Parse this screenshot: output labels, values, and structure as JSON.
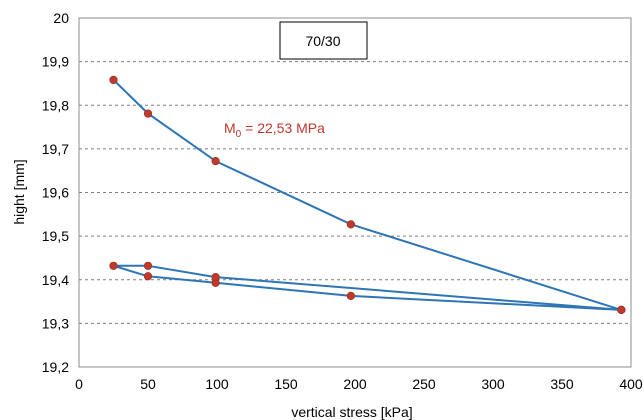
{
  "chart_data": {
    "type": "line",
    "title": "",
    "xlabel": "vertical stress [kPa]",
    "ylabel": "hight [mm]",
    "xlim": [
      0,
      400
    ],
    "ylim": [
      19.2,
      20
    ],
    "x_ticks": [
      0,
      50,
      100,
      150,
      200,
      250,
      300,
      350,
      400
    ],
    "y_ticks": [
      19.2,
      19.3,
      19.4,
      19.5,
      19.6,
      19.7,
      19.8,
      19.9,
      20
    ],
    "x_tick_labels": [
      "0",
      "50",
      "100",
      "150",
      "200",
      "250",
      "300",
      "350",
      "400"
    ],
    "y_tick_labels": [
      "19,2",
      "19,3",
      "19,4",
      "19,5",
      "19,6",
      "19,7",
      "19,8",
      "19,9",
      "20"
    ],
    "grid": "horizontal dashed",
    "legend": "none",
    "series": [
      {
        "line_color": "#2e75b6",
        "marker_color": "#c0392b",
        "points": [
          [
            25,
            19.858
          ],
          [
            50,
            19.781
          ],
          [
            99,
            19.672
          ],
          [
            197,
            19.527
          ],
          [
            393,
            19.331
          ],
          [
            197,
            19.363
          ],
          [
            99,
            19.393
          ],
          [
            50,
            19.408
          ],
          [
            25,
            19.432
          ],
          [
            50,
            19.432
          ],
          [
            99,
            19.406
          ],
          [
            393,
            19.331
          ]
        ]
      }
    ],
    "box_label": "70/30",
    "annotation": {
      "prefix": "M",
      "subscript": "0",
      "suffix": " = 22,53 MPa",
      "color": "#c0392b"
    }
  }
}
